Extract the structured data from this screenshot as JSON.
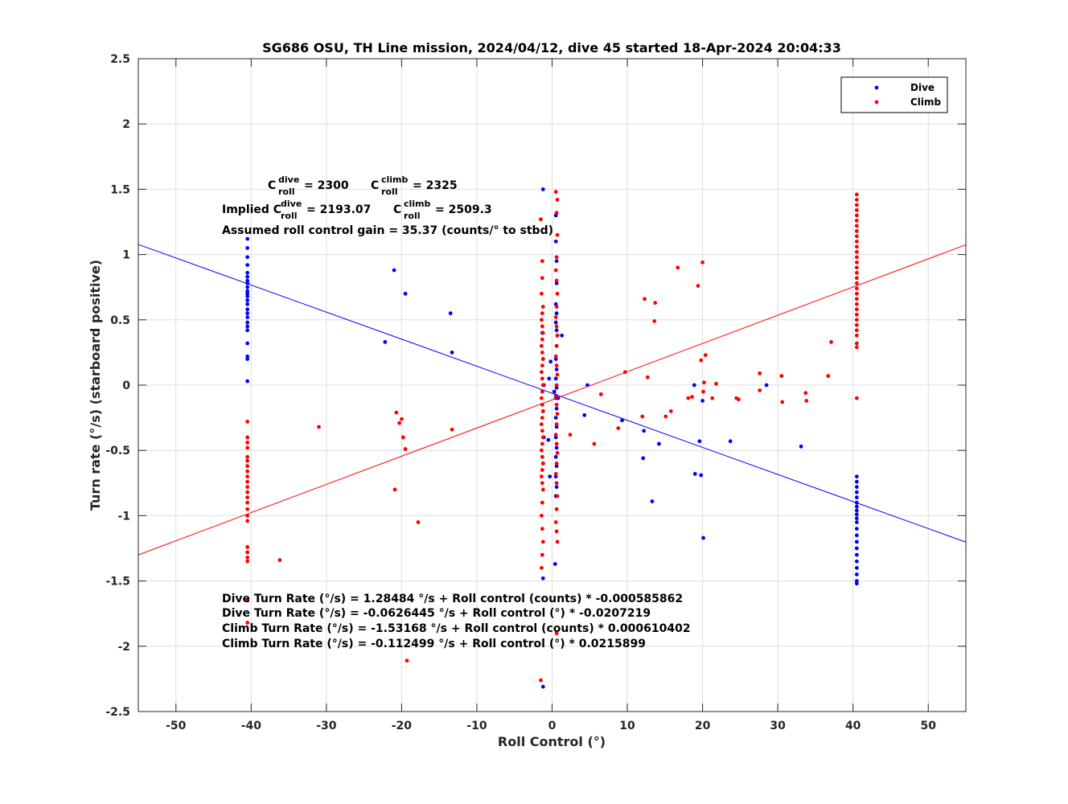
{
  "chart_data": {
    "type": "scatter",
    "title": "SG686 OSU, TH Line mission, 2024/04/12, dive 45 started 18-Apr-2024 20:04:33",
    "xlabel": "Roll Control (°)",
    "ylabel": "Turn rate (°/s) (starboard positive)",
    "xlim": [
      -55,
      55
    ],
    "ylim": [
      -2.5,
      2.5
    ],
    "xticks": [
      -50,
      -40,
      -30,
      -20,
      -10,
      0,
      10,
      20,
      30,
      40,
      50
    ],
    "xtick_labels": [
      "-50",
      "-40",
      "-30",
      "-20",
      "-10",
      "0",
      "10",
      "20",
      "30",
      "40",
      "50"
    ],
    "yticks": [
      -2.5,
      -2,
      -1.5,
      -1,
      -0.5,
      0,
      0.5,
      1,
      1.5,
      2,
      2.5
    ],
    "ytick_labels": [
      "-2.5",
      "-2",
      "-1.5",
      "-1",
      "-0.5",
      "0",
      "0.5",
      "1",
      "1.5",
      "2",
      "2.5"
    ],
    "grid": true,
    "legend_position": "top-right",
    "series": [
      {
        "name": "Dive",
        "color": "#0000ff",
        "points": [
          [
            -40.5,
            1.12
          ],
          [
            -40.5,
            1.05
          ],
          [
            -40.5,
            0.98
          ],
          [
            -40.5,
            0.92
          ],
          [
            -40.5,
            0.86
          ],
          [
            -40.5,
            0.83
          ],
          [
            -40.5,
            0.8
          ],
          [
            -40.5,
            0.78
          ],
          [
            -40.5,
            0.75
          ],
          [
            -40.5,
            0.72
          ],
          [
            -40.5,
            0.7
          ],
          [
            -40.5,
            0.68
          ],
          [
            -40.5,
            0.65
          ],
          [
            -40.5,
            0.62
          ],
          [
            -40.5,
            0.58
          ],
          [
            -40.5,
            0.55
          ],
          [
            -40.5,
            0.52
          ],
          [
            -40.5,
            0.48
          ],
          [
            -40.5,
            0.45
          ],
          [
            -40.5,
            0.42
          ],
          [
            -40.5,
            0.32
          ],
          [
            -40.5,
            0.22
          ],
          [
            -40.5,
            0.2
          ],
          [
            -40.5,
            0.03
          ],
          [
            -21.0,
            0.88
          ],
          [
            -19.5,
            0.7
          ],
          [
            -13.5,
            0.55
          ],
          [
            -13.3,
            0.25
          ],
          [
            -22.2,
            0.33
          ],
          [
            -1.2,
            1.5
          ],
          [
            -1.3,
            0.4
          ],
          [
            -1.2,
            0.2
          ],
          [
            -1.1,
            0.0
          ],
          [
            -1.2,
            -0.2
          ],
          [
            -1.1,
            -0.4
          ],
          [
            -1.2,
            -0.6
          ],
          [
            -1.2,
            -1.48
          ],
          [
            -0.5,
            -0.42
          ],
          [
            -0.3,
            -0.7
          ],
          [
            -0.4,
            0.05
          ],
          [
            -1.2,
            -2.31
          ],
          [
            0.5,
            1.3
          ],
          [
            0.5,
            1.1
          ],
          [
            0.6,
            0.95
          ],
          [
            0.6,
            0.78
          ],
          [
            0.5,
            0.62
          ],
          [
            0.6,
            0.55
          ],
          [
            0.5,
            0.48
          ],
          [
            0.6,
            0.42
          ],
          [
            0.7,
            0.38
          ],
          [
            0.6,
            0.3
          ],
          [
            0.5,
            0.2
          ],
          [
            0.6,
            0.12
          ],
          [
            0.5,
            0.05
          ],
          [
            0.6,
            -0.02
          ],
          [
            0.5,
            -0.1
          ],
          [
            0.6,
            -0.18
          ],
          [
            0.5,
            -0.25
          ],
          [
            0.6,
            -0.32
          ],
          [
            0.5,
            -0.4
          ],
          [
            0.6,
            -0.48
          ],
          [
            0.5,
            -0.55
          ],
          [
            0.6,
            -0.62
          ],
          [
            0.5,
            -0.7
          ],
          [
            0.6,
            -0.78
          ],
          [
            0.5,
            -0.85
          ],
          [
            0.4,
            -1.37
          ],
          [
            0.8,
            -0.1
          ],
          [
            0.3,
            -0.05
          ],
          [
            1.3,
            0.38
          ],
          [
            -0.2,
            0.18
          ],
          [
            4.7,
            0.0
          ],
          [
            4.3,
            -0.23
          ],
          [
            9.3,
            -0.27
          ],
          [
            12.2,
            -0.35
          ],
          [
            12.1,
            -0.56
          ],
          [
            14.2,
            -0.45
          ],
          [
            13.3,
            -0.89
          ],
          [
            18.9,
            0.0
          ],
          [
            20.0,
            -0.12
          ],
          [
            19.6,
            -0.43
          ],
          [
            19.0,
            -0.68
          ],
          [
            19.8,
            -0.69
          ],
          [
            20.1,
            -1.17
          ],
          [
            23.7,
            -0.43
          ],
          [
            28.5,
            0.0
          ],
          [
            33.1,
            -0.47
          ],
          [
            40.5,
            -0.7
          ],
          [
            40.5,
            -0.74
          ],
          [
            40.5,
            -0.78
          ],
          [
            40.5,
            -0.82
          ],
          [
            40.5,
            -0.86
          ],
          [
            40.5,
            -0.9
          ],
          [
            40.5,
            -0.93
          ],
          [
            40.5,
            -0.96
          ],
          [
            40.5,
            -0.99
          ],
          [
            40.5,
            -1.02
          ],
          [
            40.5,
            -1.05
          ],
          [
            40.5,
            -1.1
          ],
          [
            40.5,
            -1.15
          ],
          [
            40.5,
            -1.2
          ],
          [
            40.5,
            -1.25
          ],
          [
            40.5,
            -1.3
          ],
          [
            40.5,
            -1.35
          ],
          [
            40.5,
            -1.4
          ],
          [
            40.5,
            -1.45
          ],
          [
            40.5,
            -1.5
          ],
          [
            40.5,
            -1.52
          ]
        ],
        "fit_line": {
          "slope": -0.0207219,
          "intercept": -0.0626445
        }
      },
      {
        "name": "Climb",
        "color": "#ff0000",
        "points": [
          [
            -40.5,
            -0.28
          ],
          [
            -40.5,
            -0.4
          ],
          [
            -40.5,
            -0.44
          ],
          [
            -40.5,
            -0.48
          ],
          [
            -40.5,
            -0.55
          ],
          [
            -40.5,
            -0.58
          ],
          [
            -40.5,
            -0.62
          ],
          [
            -40.5,
            -0.66
          ],
          [
            -40.5,
            -0.7
          ],
          [
            -40.5,
            -0.74
          ],
          [
            -40.5,
            -0.78
          ],
          [
            -40.5,
            -0.82
          ],
          [
            -40.5,
            -0.86
          ],
          [
            -40.5,
            -0.9
          ],
          [
            -40.5,
            -0.95
          ],
          [
            -40.5,
            -1.0
          ],
          [
            -40.5,
            -1.04
          ],
          [
            -40.5,
            -1.24
          ],
          [
            -40.5,
            -1.28
          ],
          [
            -40.5,
            -1.32
          ],
          [
            -40.5,
            -1.35
          ],
          [
            -40.5,
            -1.65
          ],
          [
            -40.5,
            -1.82
          ],
          [
            -36.2,
            -1.34
          ],
          [
            -31.0,
            -0.32
          ],
          [
            -20.9,
            -0.8
          ],
          [
            -20.7,
            -0.21
          ],
          [
            -20.3,
            -0.29
          ],
          [
            -20.0,
            -0.26
          ],
          [
            -19.8,
            -0.4
          ],
          [
            -19.5,
            -0.49
          ],
          [
            -17.8,
            -1.05
          ],
          [
            -19.3,
            -2.11
          ],
          [
            -13.3,
            -0.34
          ],
          [
            -1.5,
            1.27
          ],
          [
            -1.3,
            0.95
          ],
          [
            -1.3,
            0.82
          ],
          [
            -1.4,
            0.7
          ],
          [
            -1.2,
            0.6
          ],
          [
            -1.3,
            0.55
          ],
          [
            -1.4,
            0.5
          ],
          [
            -1.3,
            0.45
          ],
          [
            -1.2,
            0.4
          ],
          [
            -1.3,
            0.35
          ],
          [
            -1.4,
            0.3
          ],
          [
            -1.3,
            0.25
          ],
          [
            -1.2,
            0.2
          ],
          [
            -1.3,
            0.15
          ],
          [
            -1.4,
            0.1
          ],
          [
            -1.3,
            0.05
          ],
          [
            -1.2,
            0.0
          ],
          [
            -1.3,
            -0.05
          ],
          [
            -1.4,
            -0.1
          ],
          [
            -1.3,
            -0.15
          ],
          [
            -1.2,
            -0.2
          ],
          [
            -1.3,
            -0.25
          ],
          [
            -1.4,
            -0.3
          ],
          [
            -1.3,
            -0.35
          ],
          [
            -1.2,
            -0.4
          ],
          [
            -1.3,
            -0.45
          ],
          [
            -1.4,
            -0.5
          ],
          [
            -1.3,
            -0.55
          ],
          [
            -1.2,
            -0.6
          ],
          [
            -1.3,
            -0.65
          ],
          [
            -1.4,
            -0.7
          ],
          [
            -1.3,
            -0.75
          ],
          [
            -1.2,
            -0.8
          ],
          [
            -1.3,
            -0.9
          ],
          [
            -1.4,
            -1.0
          ],
          [
            -1.3,
            -1.1
          ],
          [
            -1.2,
            -1.2
          ],
          [
            -1.3,
            -1.3
          ],
          [
            -1.4,
            -1.4
          ],
          [
            -1.5,
            -2.26
          ],
          [
            0.5,
            1.48
          ],
          [
            0.7,
            1.42
          ],
          [
            0.6,
            1.32
          ],
          [
            0.7,
            1.15
          ],
          [
            0.6,
            0.98
          ],
          [
            0.5,
            0.88
          ],
          [
            0.6,
            0.8
          ],
          [
            0.7,
            0.7
          ],
          [
            0.6,
            0.6
          ],
          [
            0.5,
            0.52
          ],
          [
            0.6,
            0.45
          ],
          [
            0.7,
            0.38
          ],
          [
            0.6,
            0.3
          ],
          [
            0.5,
            0.22
          ],
          [
            0.6,
            0.15
          ],
          [
            0.7,
            0.08
          ],
          [
            0.6,
            0.0
          ],
          [
            0.5,
            -0.08
          ],
          [
            0.6,
            -0.15
          ],
          [
            0.7,
            -0.22
          ],
          [
            0.6,
            -0.3
          ],
          [
            0.5,
            -0.38
          ],
          [
            0.6,
            -0.45
          ],
          [
            0.7,
            -0.52
          ],
          [
            0.6,
            -0.6
          ],
          [
            0.5,
            -0.68
          ],
          [
            0.6,
            -0.75
          ],
          [
            0.7,
            -0.85
          ],
          [
            0.6,
            -0.95
          ],
          [
            0.5,
            -1.05
          ],
          [
            0.6,
            -1.12
          ],
          [
            0.7,
            -1.2
          ],
          [
            0.6,
            -1.9
          ],
          [
            2.4,
            -0.38
          ],
          [
            5.6,
            -0.45
          ],
          [
            6.5,
            -0.07
          ],
          [
            8.8,
            -0.33
          ],
          [
            9.7,
            0.1
          ],
          [
            12.0,
            -0.24
          ],
          [
            12.3,
            0.66
          ],
          [
            12.7,
            0.06
          ],
          [
            13.6,
            0.49
          ],
          [
            13.7,
            0.63
          ],
          [
            15.1,
            -0.24
          ],
          [
            15.8,
            -0.2
          ],
          [
            16.7,
            0.9
          ],
          [
            18.1,
            -0.1
          ],
          [
            18.6,
            -0.09
          ],
          [
            19.4,
            0.76
          ],
          [
            19.8,
            0.19
          ],
          [
            20.0,
            0.94
          ],
          [
            20.1,
            -0.05
          ],
          [
            20.2,
            0.02
          ],
          [
            20.4,
            0.23
          ],
          [
            21.3,
            -0.1
          ],
          [
            21.8,
            0.01
          ],
          [
            24.5,
            -0.1
          ],
          [
            24.8,
            -0.11
          ],
          [
            27.6,
            0.09
          ],
          [
            27.6,
            -0.04
          ],
          [
            30.5,
            0.07
          ],
          [
            30.6,
            -0.13
          ],
          [
            33.7,
            -0.06
          ],
          [
            33.8,
            -0.12
          ],
          [
            36.7,
            0.07
          ],
          [
            37.1,
            0.33
          ],
          [
            40.5,
            1.46
          ],
          [
            40.5,
            1.42
          ],
          [
            40.5,
            1.38
          ],
          [
            40.5,
            1.34
          ],
          [
            40.5,
            1.3
          ],
          [
            40.5,
            1.26
          ],
          [
            40.5,
            1.22
          ],
          [
            40.5,
            1.18
          ],
          [
            40.5,
            1.14
          ],
          [
            40.5,
            1.1
          ],
          [
            40.5,
            1.06
          ],
          [
            40.5,
            1.02
          ],
          [
            40.5,
            0.98
          ],
          [
            40.5,
            0.94
          ],
          [
            40.5,
            0.9
          ],
          [
            40.5,
            0.86
          ],
          [
            40.5,
            0.82
          ],
          [
            40.5,
            0.78
          ],
          [
            40.5,
            0.74
          ],
          [
            40.5,
            0.7
          ],
          [
            40.5,
            0.66
          ],
          [
            40.5,
            0.62
          ],
          [
            40.5,
            0.58
          ],
          [
            40.5,
            0.54
          ],
          [
            40.5,
            0.5
          ],
          [
            40.5,
            0.46
          ],
          [
            40.5,
            0.42
          ],
          [
            40.5,
            0.38
          ],
          [
            40.5,
            0.32
          ],
          [
            40.5,
            0.29
          ],
          [
            40.5,
            -0.1
          ]
        ],
        "fit_line": {
          "slope": 0.0215899,
          "intercept": -0.112499
        }
      }
    ],
    "annotations": {
      "c_roll_line": {
        "c1": "C",
        "sup1": "dive",
        "sub1": "roll",
        "val1": "= 2300",
        "c2": "C",
        "sup2": "climb",
        "sub2": "roll",
        "val2": "= 2325"
      },
      "implied_line": {
        "prefix": "Implied C",
        "sup1": "dive",
        "sub1": "roll",
        "val1": "= 2193.07",
        "c2": "C",
        "sup2": "climb",
        "sub2": "roll",
        "val2": "= 2509.3"
      },
      "gain_text": "Assumed roll control gain = 35.37 (counts/° to stbd)",
      "equations": [
        "Dive Turn Rate (°/s) = 1.28484 °/s + Roll control (counts) * -0.000585862",
        "Dive Turn Rate (°/s) = -0.0626445 °/s + Roll control (°) * -0.0207219",
        "Climb Turn Rate (°/s) = -1.53168 °/s + Roll control (counts) * 0.000610402",
        "Climb Turn Rate (°/s) = -0.112499 °/s + Roll control (°) * 0.0215899"
      ]
    }
  }
}
